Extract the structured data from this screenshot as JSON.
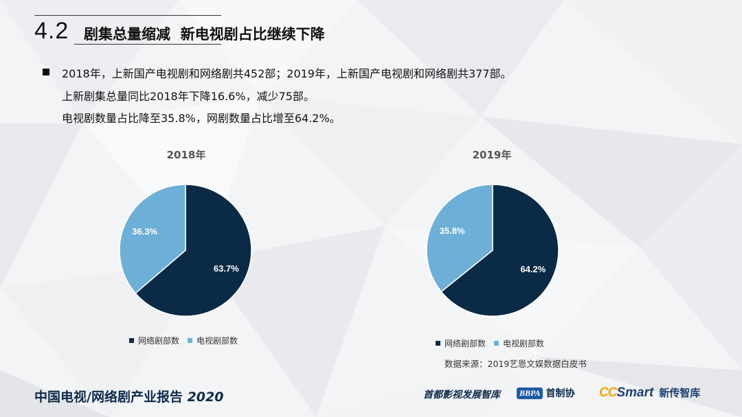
{
  "header": {
    "section_number": "4.2",
    "section_title": "剧集总量缩减  新电视剧占比继续下降"
  },
  "bullets": [
    "2018年，上新国产电视剧和网络剧共452部；2019年，上新国产电视剧和网络剧共377部。",
    "上新剧集总量同比2018年下降16.6%，减少75部。",
    "电视剧数量占比降至35.8%，网剧数量占比增至64.2%。"
  ],
  "legend": {
    "online_label": "网络剧部数",
    "tv_label": "电视剧部数"
  },
  "source": "数据来源：2019艺恩文娱数据白皮书",
  "footer": {
    "report_title": "中国电视/网络剧产业报告",
    "report_year": "2020",
    "logo1_text": "首都影视发展智库",
    "logo2_badge": "BBPA",
    "logo2_text": "首制协",
    "logo3_cc": "CC",
    "logo3_smart": "Smart",
    "logo3_text": "新传智库"
  },
  "colors": {
    "online": "#0b2a45",
    "tv": "#6dafd6",
    "footer_text": "#0d2a4a"
  },
  "chart_data": [
    {
      "type": "pie",
      "title": "2018年",
      "categories": [
        "网络剧部数",
        "电视剧部数"
      ],
      "values": [
        63.7,
        36.3
      ],
      "labels": [
        "63.7%",
        "36.3%"
      ],
      "legend": "bottom"
    },
    {
      "type": "pie",
      "title": "2019年",
      "categories": [
        "网络剧部数",
        "电视剧部数"
      ],
      "values": [
        64.2,
        35.8
      ],
      "labels": [
        "64.2%",
        "35.8%"
      ],
      "legend": "bottom"
    }
  ]
}
